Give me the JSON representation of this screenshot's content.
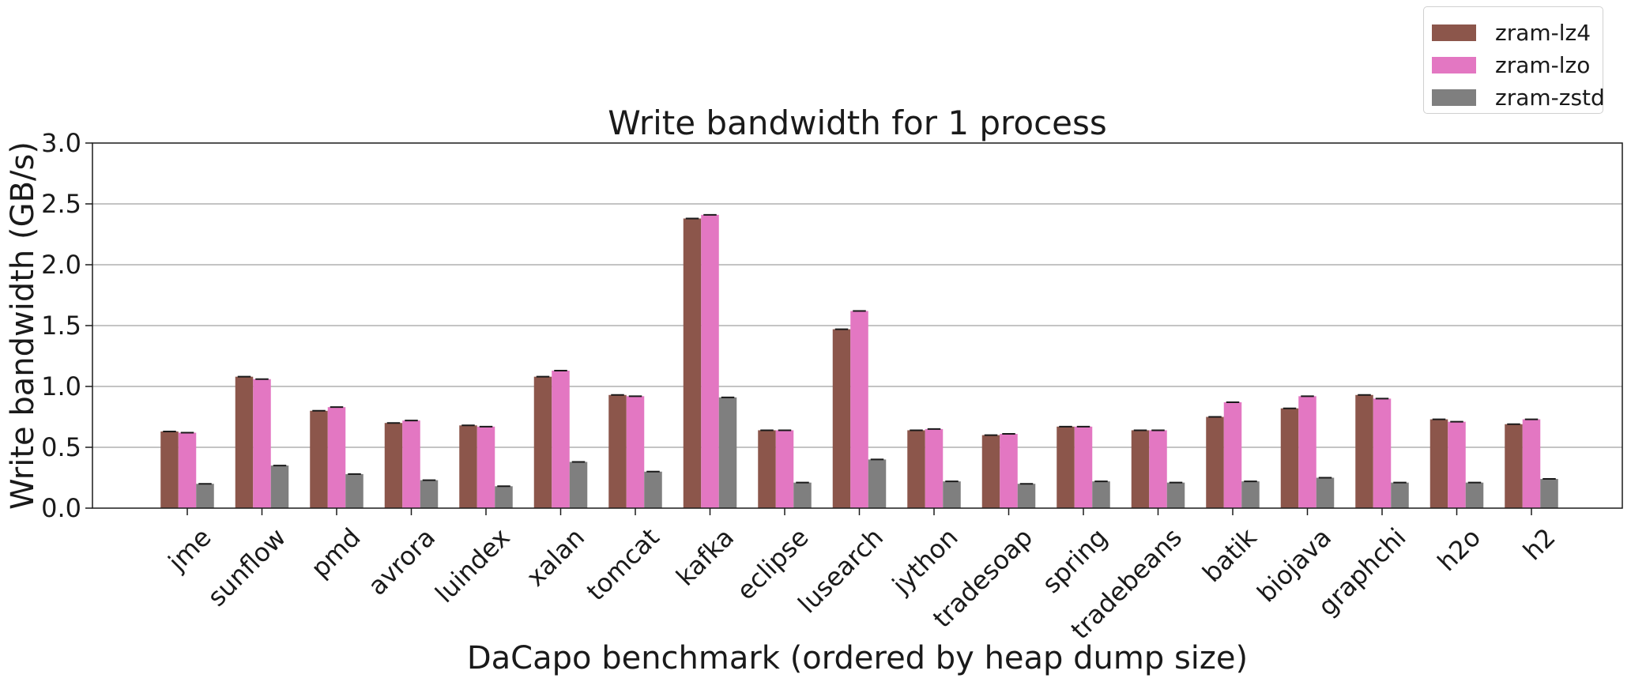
{
  "chart_data": {
    "type": "bar",
    "title": "Write bandwidth for 1 process",
    "xlabel": "DaCapo benchmark (ordered by heap dump size)",
    "ylabel": "Write bandwidth (GB/s)",
    "ylim": [
      0,
      3.0
    ],
    "yticks": [
      "0.0",
      "0.5",
      "1.0",
      "1.5",
      "2.0",
      "2.5",
      "3.0"
    ],
    "grid": "horizontal",
    "legend_position": "top-right",
    "error_bars": true,
    "categories": [
      "jme",
      "sunflow",
      "pmd",
      "avrora",
      "luindex",
      "xalan",
      "tomcat",
      "kafka",
      "eclipse",
      "lusearch",
      "jython",
      "tradesoap",
      "spring",
      "tradebeans",
      "batik",
      "biojava",
      "graphchi",
      "h2o",
      "h2"
    ],
    "series": [
      {
        "name": "zram-lz4",
        "color": "#8c564b",
        "values": [
          0.63,
          1.08,
          0.8,
          0.7,
          0.68,
          1.08,
          0.93,
          2.38,
          0.64,
          1.47,
          0.64,
          0.6,
          0.67,
          0.64,
          0.75,
          0.82,
          0.93,
          0.73,
          0.69
        ]
      },
      {
        "name": "zram-lzo",
        "color": "#e377c2",
        "values": [
          0.62,
          1.06,
          0.83,
          0.72,
          0.67,
          1.13,
          0.92,
          2.41,
          0.64,
          1.62,
          0.65,
          0.61,
          0.67,
          0.64,
          0.87,
          0.92,
          0.9,
          0.71,
          0.73
        ]
      },
      {
        "name": "zram-zstd",
        "color": "#7f7f7f",
        "values": [
          0.2,
          0.35,
          0.28,
          0.23,
          0.18,
          0.38,
          0.3,
          0.91,
          0.21,
          0.4,
          0.22,
          0.2,
          0.22,
          0.21,
          0.22,
          0.25,
          0.21,
          0.21,
          0.24
        ]
      }
    ]
  }
}
